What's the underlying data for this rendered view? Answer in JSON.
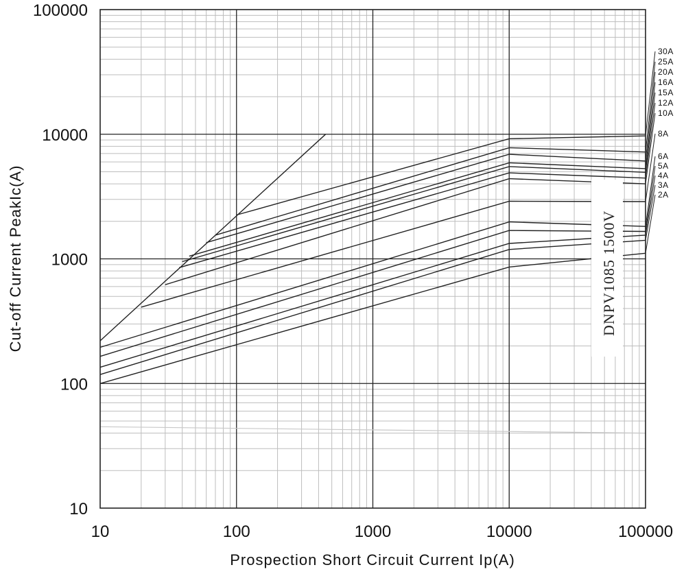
{
  "chart_data": {
    "type": "line",
    "title": "",
    "xlabel": "Prospection Short Circuit Current Ip(A)",
    "ylabel": "Cut-off Current PeakIc(A)",
    "xscale": "log",
    "yscale": "log",
    "xlim": [
      10,
      100000
    ],
    "ylim": [
      10,
      100000
    ],
    "x_ticks": [
      "10",
      "100",
      "1000",
      "10000",
      "100000"
    ],
    "y_ticks": [
      "10",
      "100",
      "1000",
      "10000",
      "100000"
    ],
    "grid": true,
    "legend": "labels at right end of each curve",
    "annotation": "DNPV1085 1500V",
    "reference_line": {
      "name": "",
      "x": [
        10,
        450
      ],
      "y": [
        220,
        10000
      ]
    },
    "series": [
      {
        "name": "30A",
        "x": [
          100,
          10000,
          100000
        ],
        "y": [
          2250,
          9200,
          9700
        ]
      },
      {
        "name": "25A",
        "x": [
          70,
          10000,
          100000
        ],
        "y": [
          1550,
          7800,
          7200
        ]
      },
      {
        "name": "20A",
        "x": [
          60,
          10000,
          100000
        ],
        "y": [
          1350,
          6900,
          6100
        ]
      },
      {
        "name": "16A",
        "x": [
          45,
          10000,
          100000
        ],
        "y": [
          1050,
          5900,
          5300
        ]
      },
      {
        "name": "15A",
        "x": [
          40,
          10000,
          100000
        ],
        "y": [
          950,
          5500,
          4950
        ]
      },
      {
        "name": "12A",
        "x": [
          38,
          10000,
          100000
        ],
        "y": [
          850,
          4900,
          4450
        ]
      },
      {
        "name": "10A",
        "x": [
          30,
          10000,
          100000
        ],
        "y": [
          620,
          4400,
          4000
        ]
      },
      {
        "name": "8A",
        "x": [
          20,
          10000,
          100000
        ],
        "y": [
          410,
          2900,
          2880
        ]
      },
      {
        "name": "6A",
        "x": [
          10,
          10000,
          100000
        ],
        "y": [
          195,
          1980,
          1820
        ]
      },
      {
        "name": "5A",
        "x": [
          10,
          10000,
          100000
        ],
        "y": [
          165,
          1690,
          1660
        ]
      },
      {
        "name": "4A",
        "x": [
          10,
          10000,
          100000
        ],
        "y": [
          135,
          1330,
          1550
        ]
      },
      {
        "name": "3A",
        "x": [
          10,
          10000,
          100000
        ],
        "y": [
          118,
          1190,
          1410
        ]
      },
      {
        "name": "2A",
        "x": [
          10,
          10000,
          100000
        ],
        "y": [
          100,
          860,
          1110
        ]
      }
    ],
    "faint_line": {
      "x": [
        10,
        100000
      ],
      "y": [
        45,
        40
      ]
    }
  }
}
